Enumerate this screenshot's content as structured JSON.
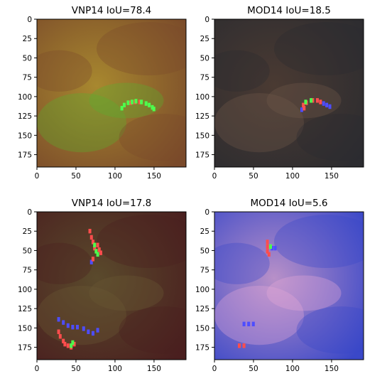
{
  "chart_data": [
    {
      "type": "image-with-fire-masks",
      "title": "VNP14 IoU=78.4",
      "xlim": [
        0,
        191
      ],
      "ylim": [
        191,
        0
      ],
      "xticks": [
        0,
        50,
        100,
        150
      ],
      "yticks": [
        0,
        25,
        50,
        75,
        100,
        125,
        150,
        175
      ],
      "background": {
        "base": "#a8882f",
        "accent": "#59b02f",
        "dark": "#7a4a2a"
      },
      "masks": {
        "green": [
          [
            107,
            112
          ],
          [
            110,
            108
          ],
          [
            115,
            105
          ],
          [
            120,
            104
          ],
          [
            125,
            103
          ],
          [
            132,
            104
          ],
          [
            138,
            106
          ],
          [
            142,
            108
          ],
          [
            146,
            111
          ],
          [
            148,
            113
          ]
        ],
        "red": [
          [
            118,
            105
          ],
          [
            124,
            104
          ],
          [
            130,
            104
          ]
        ],
        "blue": []
      }
    },
    {
      "type": "image-with-fire-masks",
      "title": "MOD14 IoU=18.5",
      "xlim": [
        0,
        191
      ],
      "ylim": [
        191,
        0
      ],
      "xticks": [
        0,
        50,
        100,
        150
      ],
      "yticks": [
        0,
        25,
        50,
        75,
        100,
        125,
        150,
        175
      ],
      "background": {
        "base": "#4a3a32",
        "accent": "#6f5a4a",
        "dark": "#2c2c30"
      },
      "masks": {
        "green": [
          [
            115,
            104
          ],
          [
            122,
            102
          ]
        ],
        "red": [
          [
            112,
            108
          ],
          [
            116,
            105
          ],
          [
            124,
            102
          ],
          [
            130,
            102
          ],
          [
            134,
            104
          ],
          [
            113,
            112
          ]
        ],
        "blue": [
          [
            110,
            114
          ],
          [
            138,
            106
          ],
          [
            142,
            108
          ],
          [
            146,
            110
          ]
        ]
      }
    },
    {
      "type": "image-with-fire-masks",
      "title": "VNP14 IoU=17.8",
      "xlim": [
        0,
        191
      ],
      "ylim": [
        191,
        0
      ],
      "xticks": [
        0,
        50,
        100,
        150
      ],
      "yticks": [
        0,
        25,
        50,
        75,
        100,
        125,
        150,
        175
      ],
      "background": {
        "base": "#5a4a2c",
        "accent": "#6a5a34",
        "dark": "#4a1f1f"
      },
      "masks": {
        "green": [
          [
            72,
            40
          ],
          [
            74,
            48
          ],
          [
            76,
            52
          ],
          [
            42,
            170
          ],
          [
            44,
            166
          ]
        ],
        "red": [
          [
            66,
            22
          ],
          [
            68,
            30
          ],
          [
            70,
            36
          ],
          [
            72,
            44
          ],
          [
            76,
            40
          ],
          [
            78,
            46
          ],
          [
            80,
            50
          ],
          [
            70,
            58
          ],
          [
            26,
            152
          ],
          [
            28,
            158
          ],
          [
            32,
            164
          ],
          [
            34,
            168
          ],
          [
            38,
            170
          ],
          [
            42,
            172
          ],
          [
            46,
            168
          ]
        ],
        "blue": [
          [
            68,
            62
          ],
          [
            26,
            136
          ],
          [
            32,
            140
          ],
          [
            38,
            144
          ],
          [
            44,
            146
          ],
          [
            50,
            146
          ],
          [
            58,
            148
          ],
          [
            64,
            152
          ],
          [
            70,
            154
          ],
          [
            76,
            150
          ]
        ]
      }
    },
    {
      "type": "image-with-fire-masks",
      "title": "MOD14 IoU=5.6",
      "xlim": [
        0,
        191
      ],
      "ylim": [
        191,
        0
      ],
      "xticks": [
        0,
        50,
        100,
        150
      ],
      "yticks": [
        0,
        25,
        50,
        75,
        100,
        125,
        150,
        175
      ],
      "background": {
        "base": "#b890c8",
        "accent": "#e6a8d6",
        "dark": "#3a48c8"
      },
      "masks": {
        "green": [
          [
            70,
            42
          ]
        ],
        "red": [
          [
            66,
            36
          ],
          [
            66,
            42
          ],
          [
            66,
            48
          ],
          [
            68,
            52
          ],
          [
            30,
            170
          ],
          [
            36,
            170
          ]
        ],
        "blue": [
          [
            72,
            44
          ],
          [
            76,
            44
          ],
          [
            36,
            142
          ],
          [
            42,
            142
          ],
          [
            48,
            142
          ]
        ]
      }
    }
  ]
}
